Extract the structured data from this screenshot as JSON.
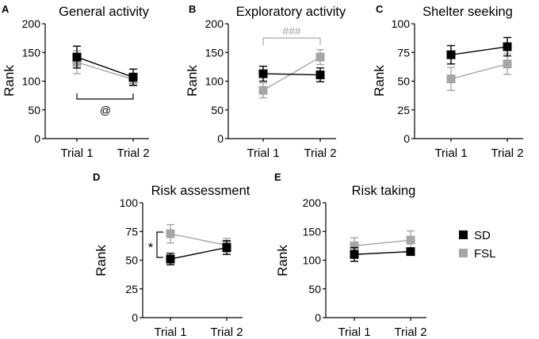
{
  "legend": [
    {
      "name": "SD",
      "color": "#000000"
    },
    {
      "name": "FSL",
      "color": "#a6a6a6"
    }
  ],
  "chart_data": [
    {
      "panel": "A",
      "type": "line",
      "title": "General activity",
      "ylabel": "Rank",
      "xlabel": "",
      "categories": [
        "Trial 1",
        "Trial 2"
      ],
      "ylim": [
        0,
        200
      ],
      "yticks": [
        "0",
        "50",
        "100",
        "150",
        "200"
      ],
      "series": [
        {
          "name": "SD",
          "color": "#000000",
          "values": [
            142,
            107
          ],
          "errors": [
            19,
            14
          ]
        },
        {
          "name": "FSL",
          "color": "#a6a6a6",
          "values": [
            133,
            103
          ],
          "errors": [
            20,
            11
          ]
        }
      ],
      "annotations": [
        {
          "text": "@",
          "kind": "bracket-below"
        }
      ]
    },
    {
      "panel": "B",
      "type": "line",
      "title": "Exploratory activity",
      "ylabel": "Rank",
      "xlabel": "",
      "categories": [
        "Trial 1",
        "Trial 2"
      ],
      "ylim": [
        0,
        200
      ],
      "yticks": [
        "0",
        "50",
        "100",
        "150",
        "200"
      ],
      "series": [
        {
          "name": "SD",
          "color": "#000000",
          "values": [
            113,
            111
          ],
          "errors": [
            13,
            12
          ]
        },
        {
          "name": "FSL",
          "color": "#a6a6a6",
          "values": [
            84,
            142
          ],
          "errors": [
            13,
            13
          ]
        }
      ],
      "annotations": [
        {
          "text": "###",
          "kind": "bracket-above"
        }
      ]
    },
    {
      "panel": "C",
      "type": "line",
      "title": "Shelter seeking",
      "ylabel": "Rank",
      "xlabel": "",
      "categories": [
        "Trial 1",
        "Trial 2"
      ],
      "ylim": [
        0,
        100
      ],
      "yticks": [
        "0",
        "25",
        "50",
        "75",
        "100"
      ],
      "series": [
        {
          "name": "SD",
          "color": "#000000",
          "values": [
            73,
            80
          ],
          "errors": [
            8,
            8
          ]
        },
        {
          "name": "FSL",
          "color": "#a6a6a6",
          "values": [
            52,
            65
          ],
          "errors": [
            10,
            9
          ]
        }
      ],
      "annotations": []
    },
    {
      "panel": "D",
      "type": "line",
      "title": "Risk assessment",
      "ylabel": "Rank",
      "xlabel": "",
      "categories": [
        "Trial 1",
        "Trial 2"
      ],
      "ylim": [
        0,
        100
      ],
      "yticks": [
        "0",
        "25",
        "50",
        "75",
        "100"
      ],
      "series": [
        {
          "name": "SD",
          "color": "#000000",
          "values": [
            51,
            61
          ],
          "errors": [
            5,
            6
          ]
        },
        {
          "name": "FSL",
          "color": "#a6a6a6",
          "values": [
            73,
            63
          ],
          "errors": [
            8,
            6
          ]
        }
      ],
      "annotations": [
        {
          "text": "*",
          "kind": "bracket-left"
        }
      ]
    },
    {
      "panel": "E",
      "type": "line",
      "title": "Risk taking",
      "ylabel": "Rank",
      "xlabel": "",
      "categories": [
        "Trial 1",
        "Trial 2"
      ],
      "ylim": [
        0,
        200
      ],
      "yticks": [
        "0",
        "50",
        "100",
        "150",
        "200"
      ],
      "series": [
        {
          "name": "SD",
          "color": "#000000",
          "values": [
            110,
            115
          ],
          "errors": [
            12,
            6
          ]
        },
        {
          "name": "FSL",
          "color": "#a6a6a6",
          "values": [
            125,
            135
          ],
          "errors": [
            14,
            16
          ]
        }
      ],
      "annotations": []
    }
  ]
}
